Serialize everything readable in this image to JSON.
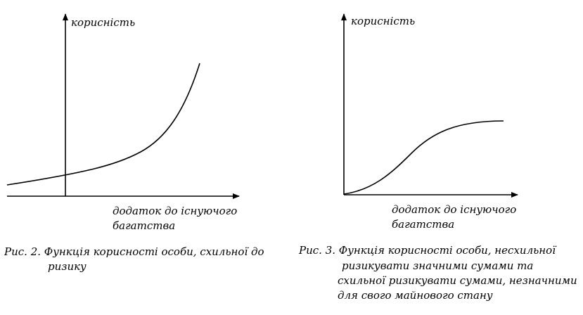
{
  "figure_left": {
    "y_axis_label": "корисність",
    "x_axis_label_line1": "додаток до існуючого",
    "x_axis_label_line2": "багатства",
    "caption_line1": "Рис. 2. Функція корисності особи, схильної до",
    "caption_line2": "ризику"
  },
  "figure_right": {
    "y_axis_label": "корисність",
    "x_axis_label_line1": "додаток до існуючого",
    "x_axis_label_line2": "багатства",
    "caption_line1": "Рис. 3.  Функція корисності особи, несхильної",
    "caption_line2": "ризикувати значними сумами та",
    "caption_line3": "схильної ризикувати сумами, незначними",
    "caption_line4": "для свого майнового стану"
  },
  "colors": {
    "ink": "#000000",
    "background": "#ffffff"
  }
}
